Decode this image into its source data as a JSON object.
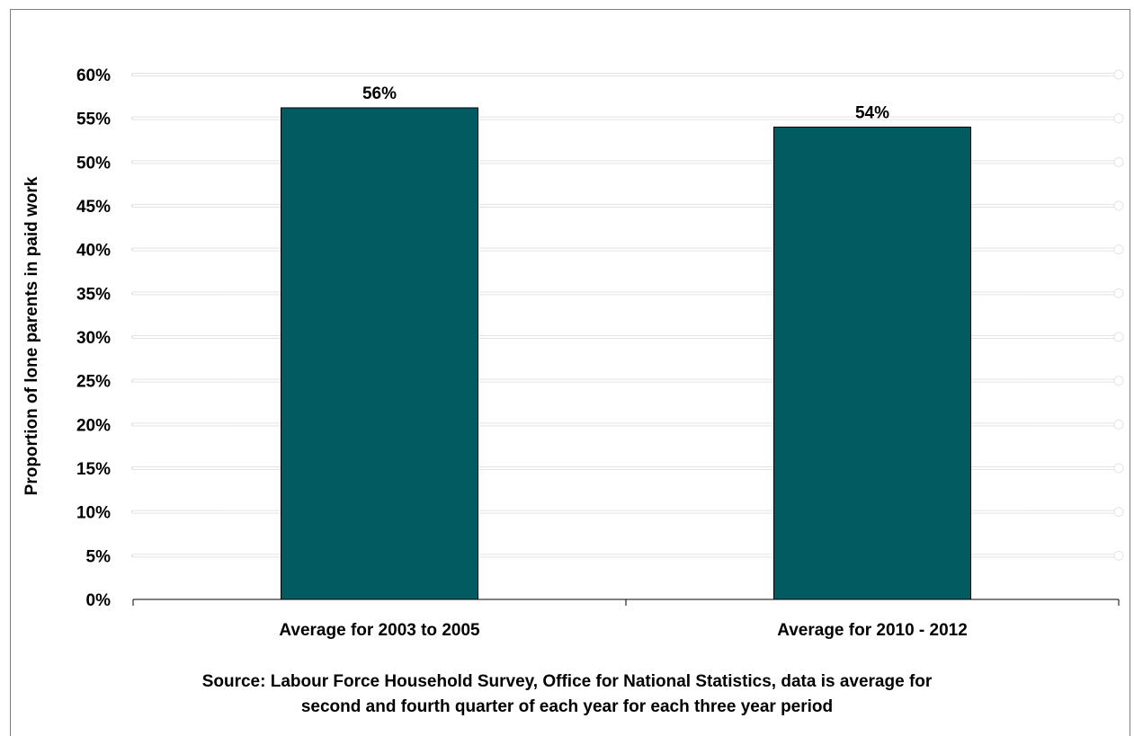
{
  "chart_data": {
    "type": "bar",
    "categories": [
      "Average for 2003 to 2005",
      "Average for 2010 - 2012"
    ],
    "values": [
      56.2,
      54.0
    ],
    "data_labels": [
      "56%",
      "54%"
    ],
    "title": "",
    "xlabel": "",
    "ylabel": "Proportion of lone parents in paid work",
    "ylim": [
      0,
      60
    ],
    "yticks": [
      0,
      5,
      10,
      15,
      20,
      25,
      30,
      35,
      40,
      45,
      50,
      55,
      60
    ],
    "ytick_labels": [
      "0%",
      "5%",
      "10%",
      "15%",
      "20%",
      "25%",
      "30%",
      "35%",
      "40%",
      "45%",
      "50%",
      "55%",
      "60%"
    ],
    "grid": true,
    "bar_color": "#035b62",
    "gridline_color": "#ffffff",
    "plot_background": "#ffffff"
  },
  "source": {
    "line1": "Source: Labour Force Household Survey, Office for National Statistics, data is average for",
    "line2": "second and fourth quarter of each year for each three year period"
  }
}
